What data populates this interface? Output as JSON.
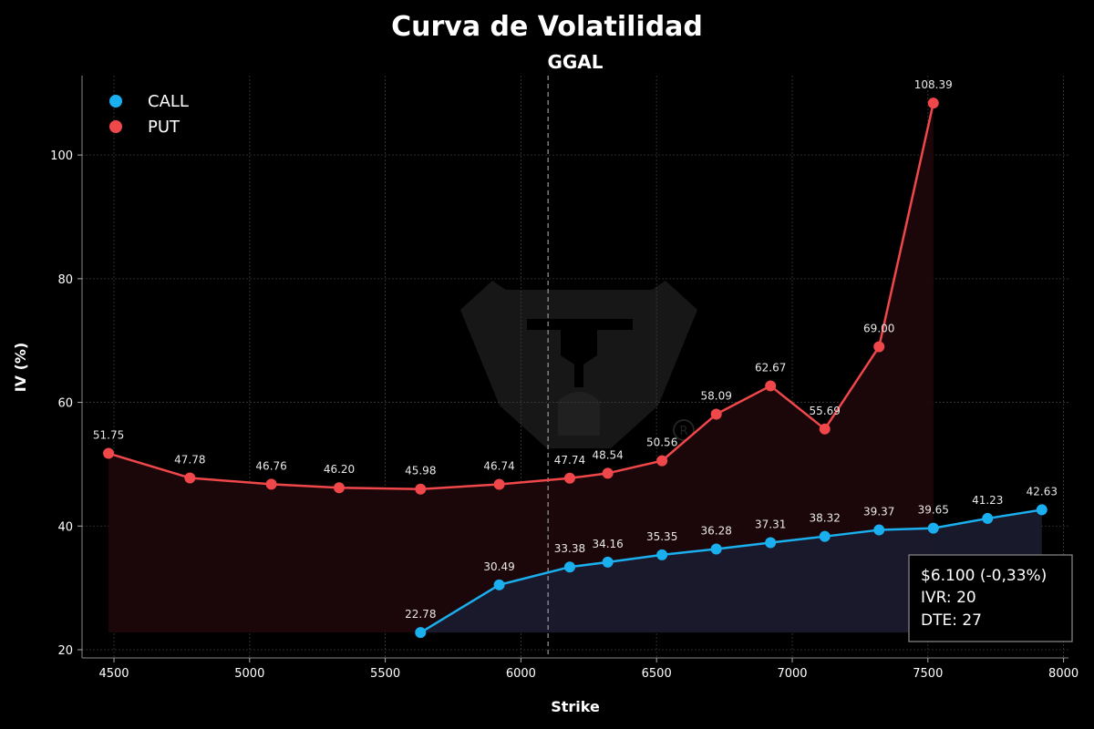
{
  "chart_data": {
    "type": "line",
    "title": "Curva de Volatilidad",
    "subtitle": "GGAL",
    "xlabel": "Strike",
    "ylabel": "IV (%)",
    "xlim": [
      4400,
      8000
    ],
    "ylim": [
      19,
      113
    ],
    "x_ticks": [
      4500,
      5000,
      5500,
      6000,
      6500,
      7000,
      7500,
      8000
    ],
    "y_ticks": [
      20,
      40,
      60,
      80,
      100
    ],
    "grid": true,
    "legend_position": "top-left",
    "spot_line_x": 6100,
    "series": [
      {
        "name": "CALL",
        "color": "#1ab0f0",
        "x": [
          5630,
          5920,
          6180,
          6320,
          6520,
          6720,
          6920,
          7120,
          7320,
          7520,
          7720,
          7920
        ],
        "values": [
          22.78,
          30.49,
          33.38,
          34.16,
          35.35,
          36.28,
          37.31,
          38.32,
          39.37,
          39.65,
          41.23,
          42.63
        ],
        "labels": [
          "22.78",
          "30.49",
          "33.38",
          "34.16",
          "35.35",
          "36.28",
          "37.31",
          "38.32",
          "39.37",
          "39.65",
          "41.23",
          "42.63"
        ]
      },
      {
        "name": "PUT",
        "color": "#f0474a",
        "x": [
          4480,
          4780,
          5080,
          5330,
          5630,
          5920,
          6180,
          6320,
          6520,
          6720,
          6920,
          7120,
          7320,
          7520
        ],
        "values": [
          51.75,
          47.78,
          46.76,
          46.2,
          45.98,
          46.74,
          47.74,
          48.54,
          50.56,
          58.09,
          62.67,
          55.69,
          69.0,
          108.39
        ],
        "labels": [
          "51.75",
          "47.78",
          "46.76",
          "46.20",
          "45.98",
          "46.74",
          "47.74",
          "48.54",
          "50.56",
          "58.09",
          "62.67",
          "55.69",
          "69.00",
          "108.39"
        ]
      }
    ]
  },
  "info_box": {
    "price": "$6.100 (-0,33%)",
    "ivr": "IVR: 20",
    "dte": "DTE: 27"
  },
  "watermark_icon": "bulldog-logo-icon"
}
